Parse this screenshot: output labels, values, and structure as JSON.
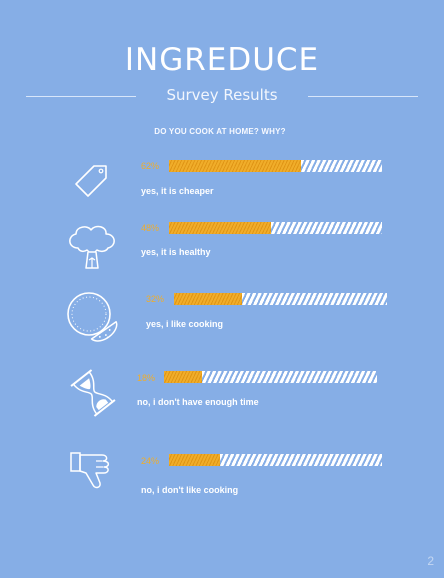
{
  "header": {
    "title": "INGREDUCE",
    "subtitle": "Survey Results"
  },
  "question": "DO YOU COOK AT HOME? WHY?",
  "items": [
    {
      "icon": "price-tag-icon",
      "percent_text": "62%",
      "percent": 62,
      "label": "yes, it is cheaper"
    },
    {
      "icon": "broccoli-icon",
      "percent_text": "48%",
      "percent": 48,
      "label": "yes, it is healthy"
    },
    {
      "icon": "watermelon-icon",
      "percent_text": "32%",
      "percent": 32,
      "label": "yes, i like cooking"
    },
    {
      "icon": "hourglass-icon",
      "percent_text": "18%",
      "percent": 18,
      "label": "no, i don't have enough time"
    },
    {
      "icon": "thumbs-down-icon",
      "percent_text": "24%",
      "percent": 24,
      "label": "no, i don't like cooking"
    }
  ],
  "colors": {
    "background": "#86aee6",
    "accent": "#f0ad2a",
    "text": "#ffffff"
  },
  "page_number": "2"
}
